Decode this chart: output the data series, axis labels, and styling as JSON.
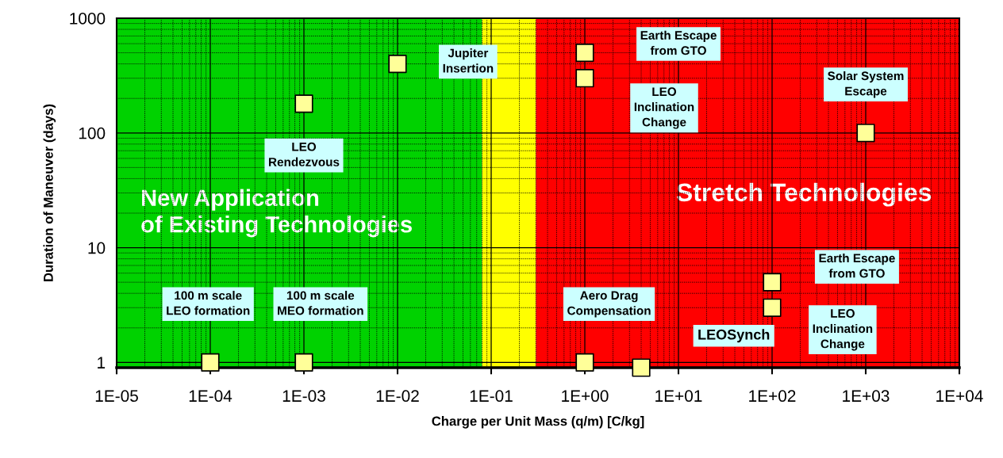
{
  "chart_data": {
    "type": "scatter",
    "xlabel": "Charge per Unit Mass (q/m) [C/kg]",
    "ylabel": "Duration of Maneuver (days)",
    "log": "xy",
    "grid": true,
    "marker": "square",
    "xlim": [
      1e-05,
      10000
    ],
    "ylim": [
      0.9,
      1000
    ],
    "xticks": [
      {
        "value": 1e-05,
        "label": "1E-05"
      },
      {
        "value": 0.0001,
        "label": "1E-04"
      },
      {
        "value": 0.001,
        "label": "1E-03"
      },
      {
        "value": 0.01,
        "label": "1E-02"
      },
      {
        "value": 0.1,
        "label": "1E-01"
      },
      {
        "value": 1,
        "label": "1E+00"
      },
      {
        "value": 10,
        "label": "1E+01"
      },
      {
        "value": 100,
        "label": "1E+02"
      },
      {
        "value": 1000,
        "label": "1E+03"
      },
      {
        "value": 10000,
        "label": "1E+04"
      }
    ],
    "yticks": [
      1,
      10,
      100,
      1000
    ],
    "bands": [
      {
        "axis": "x",
        "from": 1e-05,
        "to": 0.08,
        "label": "New Application\nof Existing Technologies",
        "color": "#00d200"
      },
      {
        "axis": "x",
        "from": 0.08,
        "to": 0.3,
        "label": null,
        "color": "#ffff00"
      },
      {
        "axis": "x",
        "from": 0.3,
        "to": 10000,
        "label": "Stretch Technologies",
        "color": "#ff0000"
      }
    ],
    "series": [
      {
        "color": "#ffff99",
        "x": [
          0.0001,
          0.001,
          0.001,
          0.01,
          1,
          1,
          1000,
          100,
          100,
          1,
          4
        ],
        "values": [
          1,
          1,
          180,
          400,
          500,
          300,
          100,
          5,
          3,
          1,
          0.9
        ]
      }
    ],
    "annotations": [
      "100 m scale\nLEO formation",
      "100 m scale\nMEO formation",
      "LEO\nRendezvous",
      "Jupiter\nInsertion",
      "Earth Escape\nfrom GTO",
      "LEO\nInclination\nChange",
      "Solar System\nEscape",
      "Earth Escape\nfrom GTO",
      "LEO\nInclination\nChange",
      "Aero Drag\nCompensation",
      "LEOSynch"
    ]
  }
}
